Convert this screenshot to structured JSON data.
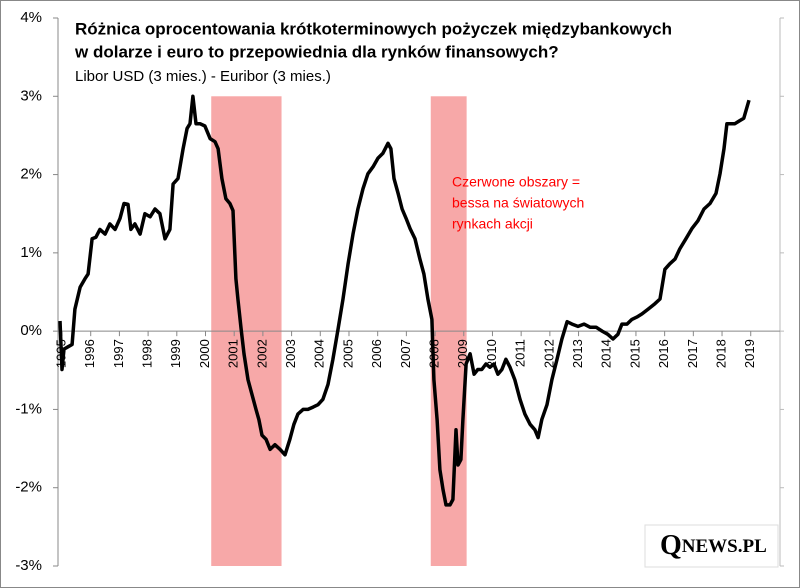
{
  "chart_data": {
    "type": "line",
    "title": [
      "Różnica oprocentowania krótkoterminowych pożyczek międzybankowych",
      "w dolarze i euro to przepowiednia dla rynków finansowych?"
    ],
    "subtitle": "Libor  USD (3 mies.) - Euribor (3 mies.)",
    "annotation": [
      "Czerwone obszary =",
      "bessa na światowych",
      "rynkach akcji"
    ],
    "annotation_color": "#ff0000",
    "logo": [
      "Q",
      "NEWS.PL"
    ],
    "regions": [
      {
        "x": [
          2000.2,
          2002.65
        ],
        "y": [
          -3,
          3
        ]
      },
      {
        "x": [
          2007.85,
          2009.1
        ],
        "y": [
          -3,
          3
        ]
      }
    ],
    "region_color": "#f7a8a8",
    "series": [
      {
        "color": "#000000",
        "x": [
          1994.93,
          1995.0,
          1995.07,
          1995.21,
          1995.35,
          1995.45,
          1995.63,
          1995.8,
          1995.91,
          1996.05,
          1996.18,
          1996.32,
          1996.5,
          1996.67,
          1996.85,
          1997.02,
          1997.16,
          1997.3,
          1997.4,
          1997.54,
          1997.72,
          1997.89,
          1998.07,
          1998.24,
          1998.41,
          1998.59,
          1998.76,
          1998.87,
          1999.04,
          1999.22,
          1999.36,
          1999.46,
          1999.56,
          1999.67,
          1999.81,
          1999.98,
          2000.16,
          2000.33,
          2000.44,
          2000.57,
          2000.71,
          2000.85,
          2000.96,
          2001.06,
          2001.13,
          2001.24,
          2001.34,
          2001.48,
          2001.62,
          2001.76,
          2001.86,
          2001.97,
          2002.11,
          2002.25,
          2002.42,
          2002.6,
          2002.77,
          2002.94,
          2003.08,
          2003.22,
          2003.4,
          2003.57,
          2003.75,
          2003.92,
          2004.09,
          2004.27,
          2004.44,
          2004.62,
          2004.79,
          2004.97,
          2005.14,
          2005.31,
          2005.49,
          2005.66,
          2005.84,
          2006.01,
          2006.18,
          2006.36,
          2006.46,
          2006.57,
          2006.71,
          2006.85,
          2006.99,
          2007.13,
          2007.3,
          2007.47,
          2007.61,
          2007.75,
          2007.89,
          2007.96,
          2008.07,
          2008.17,
          2008.28,
          2008.38,
          2008.52,
          2008.62,
          2008.73,
          2008.8,
          2008.9,
          2008.97,
          2009.08,
          2009.22,
          2009.36,
          2009.49,
          2009.63,
          2009.77,
          2009.91,
          2010.05,
          2010.19,
          2010.33,
          2010.47,
          2010.61,
          2010.78,
          2010.96,
          2011.13,
          2011.31,
          2011.48,
          2011.59,
          2011.72,
          2011.9,
          2012.07,
          2012.25,
          2012.42,
          2012.6,
          2012.77,
          2012.98,
          2013.19,
          2013.4,
          2013.61,
          2013.82,
          2014.02,
          2014.2,
          2014.37,
          2014.51,
          2014.69,
          2014.86,
          2015.03,
          2015.21,
          2015.42,
          2015.66,
          2015.84,
          2016.01,
          2016.18,
          2016.36,
          2016.53,
          2016.74,
          2016.95,
          2017.16,
          2017.37,
          2017.58,
          2017.79,
          2017.93,
          2018.07,
          2018.17,
          2018.31,
          2018.45,
          2018.62,
          2018.76,
          2018.94
        ],
        "values": [
          0.13,
          -0.49,
          -0.23,
          -0.2,
          -0.17,
          0.28,
          0.56,
          0.67,
          0.73,
          1.18,
          1.2,
          1.3,
          1.24,
          1.37,
          1.3,
          1.44,
          1.63,
          1.62,
          1.3,
          1.37,
          1.24,
          1.5,
          1.46,
          1.56,
          1.5,
          1.18,
          1.3,
          1.88,
          1.95,
          2.33,
          2.59,
          2.65,
          3.0,
          2.65,
          2.65,
          2.62,
          2.46,
          2.42,
          2.33,
          1.95,
          1.69,
          1.63,
          1.54,
          0.67,
          0.41,
          0.03,
          -0.29,
          -0.62,
          -0.81,
          -1.0,
          -1.13,
          -1.33,
          -1.38,
          -1.51,
          -1.45,
          -1.51,
          -1.58,
          -1.38,
          -1.19,
          -1.06,
          -1.0,
          -1.0,
          -0.97,
          -0.94,
          -0.87,
          -0.68,
          -0.36,
          0.03,
          0.41,
          0.86,
          1.24,
          1.56,
          1.82,
          2.01,
          2.1,
          2.21,
          2.27,
          2.4,
          2.33,
          1.95,
          1.76,
          1.56,
          1.44,
          1.31,
          1.18,
          0.92,
          0.73,
          0.41,
          0.15,
          -0.62,
          -1.13,
          -1.77,
          -2.03,
          -2.22,
          -2.22,
          -2.15,
          -1.26,
          -1.71,
          -1.64,
          -1.13,
          -0.42,
          -0.29,
          -0.55,
          -0.49,
          -0.49,
          -0.42,
          -0.46,
          -0.42,
          -0.55,
          -0.49,
          -0.36,
          -0.46,
          -0.62,
          -0.87,
          -1.06,
          -1.19,
          -1.26,
          -1.36,
          -1.13,
          -0.94,
          -0.62,
          -0.36,
          -0.1,
          0.12,
          0.09,
          0.06,
          0.09,
          0.05,
          0.05,
          0,
          -0.04,
          -0.1,
          -0.04,
          0.09,
          0.09,
          0.15,
          0.18,
          0.22,
          0.28,
          0.35,
          0.41,
          0.79,
          0.86,
          0.92,
          1.05,
          1.18,
          1.31,
          1.41,
          1.56,
          1.63,
          1.76,
          2.01,
          2.33,
          2.65,
          2.65,
          2.65,
          2.69,
          2.72,
          2.95
        ]
      }
    ],
    "xlim": [
      1994.86,
      2020.02
    ],
    "xticks": [
      1995,
      1996,
      1997,
      1998,
      1999,
      2000,
      2001,
      2002,
      2003,
      2004,
      2005,
      2006,
      2007,
      2008,
      2009,
      2010,
      2011,
      2012,
      2013,
      2014,
      2015,
      2016,
      2017,
      2018,
      2019
    ],
    "ylim": [
      -3,
      4
    ],
    "yticks": [
      {
        "value": -3,
        "label": "-3%"
      },
      {
        "value": -2,
        "label": "-2%"
      },
      {
        "value": -1,
        "label": "-1%"
      },
      {
        "value": 0,
        "label": "0%"
      },
      {
        "value": 1,
        "label": "1%"
      },
      {
        "value": 2,
        "label": "2%"
      },
      {
        "value": 3,
        "label": "3%"
      },
      {
        "value": 4,
        "label": "4%"
      }
    ]
  }
}
